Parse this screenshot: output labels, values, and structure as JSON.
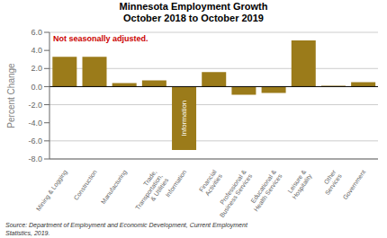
{
  "chart_data": {
    "type": "bar",
    "title": "Minnesota Employment Growth\nOctober 2018 to October 2019",
    "categories": [
      "Mining & Logging",
      "Construction",
      "Manufacturing",
      "Trade,\nTransportation,\n& Utilities",
      "Information",
      "Financial\nActivities",
      "Professional &\nBusiness Services",
      "Educational &\nHealth Services",
      "Leisure &\nHospitality",
      "Other\nServices",
      "Government"
    ],
    "values": [
      3.3,
      3.3,
      0.4,
      0.7,
      -7.0,
      1.6,
      -0.9,
      -0.7,
      5.1,
      0.1,
      0.5
    ],
    "color": "#9B7B1A",
    "y_label": "Percent Change",
    "ylim": [
      -8.0,
      6.0
    ],
    "yticks": [
      {
        "value": -8,
        "label": "-8.0"
      },
      {
        "value": -6,
        "label": "-6.0"
      },
      {
        "value": -4,
        "label": "-4.0"
      },
      {
        "value": -2,
        "label": "-2.0"
      },
      {
        "value": 0,
        "label": "0.0"
      },
      {
        "value": 2,
        "label": "2.0"
      },
      {
        "value": 4,
        "label": "4.0"
      },
      {
        "value": 6,
        "label": "6.0"
      }
    ],
    "grid": true,
    "annotations": [
      {
        "text": "Not seasonally adjusted.",
        "color": "#CC0000"
      },
      {
        "text": "Information",
        "category": "Information",
        "color": "#FFFFFF"
      }
    ],
    "source": "Source: Department of Employment and Economic Development, Current Employment\nStatistics, 2019."
  }
}
